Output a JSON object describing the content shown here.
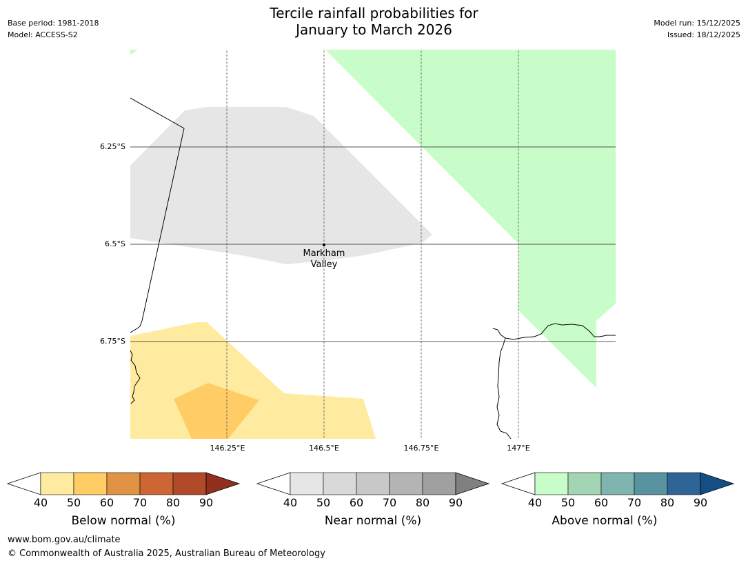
{
  "header": {
    "title_line1": "Tercile rainfall probabilities for",
    "title_line2": "January to March 2026",
    "base_period": "Base period: 1981-2018",
    "model": "Model: ACCESS-S2",
    "model_run": "Model run: 15/12/2025",
    "issued": "Issued: 18/12/2025"
  },
  "map": {
    "lat_labels": [
      "6.25°S",
      "6.5°S",
      "6.75°S"
    ],
    "lon_labels": [
      "146.25°E",
      "146.5°E",
      "146.75°E",
      "147°E"
    ],
    "place": {
      "line1": "Markham",
      "line2": "Valley"
    },
    "colors": {
      "near_normal_40": "#e6e6e6",
      "above_normal_40": "#c8fcc8",
      "below_normal_40": "#ffeba0",
      "below_normal_50": "#ffcc66",
      "gridline": "#555555",
      "coastline": "#000000"
    }
  },
  "colorbars": [
    {
      "label": "Below normal (%)",
      "ticks": [
        "40",
        "50",
        "60",
        "70",
        "80",
        "90"
      ],
      "colors": [
        "#ffeba0",
        "#ffcc66",
        "#e09245",
        "#cd6535",
        "#b04a28",
        "#923020"
      ]
    },
    {
      "label": "Near normal (%)",
      "ticks": [
        "40",
        "50",
        "60",
        "70",
        "80",
        "90"
      ],
      "colors": [
        "#e6e6e6",
        "#d9d9d9",
        "#c8c8c8",
        "#b4b4b4",
        "#a0a0a0",
        "#808080"
      ]
    },
    {
      "label": "Above normal (%)",
      "ticks": [
        "40",
        "50",
        "60",
        "70",
        "80",
        "90"
      ],
      "colors": [
        "#c8fcc8",
        "#a3d4b4",
        "#7fb5ae",
        "#5a93a0",
        "#2e6496",
        "#154e85"
      ]
    }
  ],
  "footer": {
    "url": "www.bom.gov.au/climate",
    "copyright": "© Commonwealth of Australia 2025, Australian Bureau of Meteorology"
  }
}
